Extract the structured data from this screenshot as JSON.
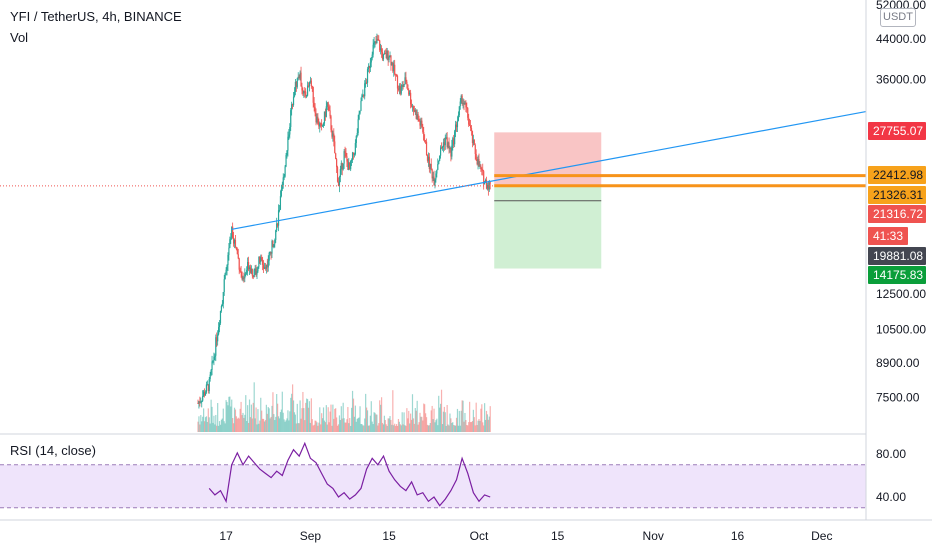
{
  "header": {
    "symbol_line": "YFI / TetherUS, 4h, BINANCE",
    "volume_label": "Vol",
    "currency_button": "USDT"
  },
  "rsi_pane": {
    "title": "RSI (14, close)",
    "tick_labels": [
      "80.00",
      "40.00"
    ]
  },
  "price_scale": {
    "tick_labels": [
      "52000.00",
      "44000.00",
      "36000.00",
      "12500.00",
      "10500.00",
      "8900.00",
      "7500.00"
    ]
  },
  "price_badges": [
    {
      "label": "27755.07",
      "color": "#f23645",
      "text_color": "#ffffff"
    },
    {
      "label": "22412.98",
      "color": "#f7a21b",
      "text_color": "#131722"
    },
    {
      "label": "21326.31",
      "color": "#f7a21b",
      "text_color": "#131722"
    },
    {
      "label": "21316.72",
      "color": "#ef5350",
      "text_color": "#ffffff"
    },
    {
      "label": "41:33",
      "color": "#ef5350",
      "text_color": "#ffffff"
    },
    {
      "label": "19881.08",
      "color": "#434651",
      "text_color": "#ffffff"
    },
    {
      "label": "14175.83",
      "color": "#0a9e3a",
      "text_color": "#ffffff"
    }
  ],
  "time_axis": {
    "labels": [
      "17",
      "Sep",
      "15",
      "Oct",
      "15",
      "Nov",
      "16",
      "Dec"
    ]
  },
  "colors": {
    "up": "#26a69a",
    "down": "#ef5350",
    "trendline": "#2196f3",
    "level_lines": "#f7931a",
    "stop_zone": "#f8bbbb",
    "target_zone": "#c8eccb",
    "rsi_line": "#7b1fa2",
    "rsi_band": "#efe4fb"
  },
  "chart_data": {
    "type": "candlestick",
    "symbol": "YFI / TetherUS",
    "interval": "4h",
    "exchange": "BINANCE",
    "scale": "log",
    "close_path": [
      [
        "Aug 12",
        7300
      ],
      [
        "Aug 14",
        8000
      ],
      [
        "Aug 15",
        9500
      ],
      [
        "Aug 16",
        11500
      ],
      [
        "Aug 17",
        14000
      ],
      [
        "Aug 18",
        17200
      ],
      [
        "Aug 19",
        15200
      ],
      [
        "Aug 20",
        13200
      ],
      [
        "Aug 21",
        14500
      ],
      [
        "Aug 22",
        13800
      ],
      [
        "Aug 23",
        14800
      ],
      [
        "Aug 24",
        14200
      ],
      [
        "Aug 25",
        15500
      ],
      [
        "Aug 26",
        17500
      ],
      [
        "Aug 27",
        21000
      ],
      [
        "Aug 28",
        27000
      ],
      [
        "Aug 29",
        34000
      ],
      [
        "Aug 30",
        37000
      ],
      [
        "Aug 31",
        33000
      ],
      [
        "Sep 1",
        36000
      ],
      [
        "Sep 2",
        30000
      ],
      [
        "Sep 3",
        28000
      ],
      [
        "Sep 4",
        32000
      ],
      [
        "Sep 5",
        27000
      ],
      [
        "Sep 6",
        21500
      ],
      [
        "Sep 7",
        25000
      ],
      [
        "Sep 8",
        23000
      ],
      [
        "Sep 9",
        26000
      ],
      [
        "Sep 10",
        32000
      ],
      [
        "Sep 11",
        36000
      ],
      [
        "Sep 12",
        42000
      ],
      [
        "Sep 13",
        43500
      ],
      [
        "Sep 14",
        40000
      ],
      [
        "Sep 15",
        41000
      ],
      [
        "Sep 16",
        37000
      ],
      [
        "Sep 17",
        34000
      ],
      [
        "Sep 18",
        36000
      ],
      [
        "Sep 19",
        32000
      ],
      [
        "Sep 20",
        30000
      ],
      [
        "Sep 21",
        28000
      ],
      [
        "Sep 22",
        24000
      ],
      [
        "Sep 23",
        22000
      ],
      [
        "Sep 24",
        25000
      ],
      [
        "Sep 25",
        27000
      ],
      [
        "Sep 26",
        25000
      ],
      [
        "Sep 27",
        29000
      ],
      [
        "Sep 28",
        33000
      ],
      [
        "Sep 29",
        30000
      ],
      [
        "Sep 30",
        26000
      ],
      [
        "Oct 1",
        23500
      ],
      [
        "Oct 2",
        21800
      ],
      [
        "Oct 3",
        21316.72
      ]
    ],
    "trendline": {
      "from": [
        "Aug 18",
        17200
      ],
      "to": [
        "Dec 4",
        30000
      ]
    },
    "horizontal_levels": [
      22412.98,
      21326.31
    ],
    "last_price": 21316.72,
    "position_tool": {
      "type": "short",
      "entry": 21326.31,
      "stop": 27755.07,
      "target": 14175.83,
      "from": "Oct 3",
      "to": "Oct 24"
    },
    "price_axis_ticks": [
      52000,
      44000,
      36000,
      12500,
      10500,
      8900,
      7500
    ],
    "time_axis_ticks": [
      "17",
      "Sep",
      "15",
      "Oct",
      "15",
      "Nov",
      "16",
      "Dec"
    ],
    "rsi": {
      "period": 14,
      "source": "close",
      "upper_band": 70,
      "lower_band": 30,
      "ticks": [
        80,
        40
      ],
      "values": [
        [
          "Aug 14",
          48
        ],
        [
          "Aug 15",
          42
        ],
        [
          "Aug 16",
          46
        ],
        [
          "Aug 17",
          36
        ],
        [
          "Aug 18",
          70
        ],
        [
          "Aug 19",
          81
        ],
        [
          "Aug 20",
          70
        ],
        [
          "Aug 21",
          78
        ],
        [
          "Aug 22",
          72
        ],
        [
          "Aug 23",
          66
        ],
        [
          "Aug 24",
          62
        ],
        [
          "Aug 25",
          58
        ],
        [
          "Aug 26",
          64
        ],
        [
          "Aug 27",
          60
        ],
        [
          "Aug 28",
          74
        ],
        [
          "Aug 29",
          84
        ],
        [
          "Aug 30",
          78
        ],
        [
          "Aug 31",
          90
        ],
        [
          "Sep 1",
          76
        ],
        [
          "Sep 2",
          72
        ],
        [
          "Sep 3",
          62
        ],
        [
          "Sep 4",
          52
        ],
        [
          "Sep 5",
          48
        ],
        [
          "Sep 6",
          40
        ],
        [
          "Sep 7",
          44
        ],
        [
          "Sep 8",
          38
        ],
        [
          "Sep 9",
          42
        ],
        [
          "Sep 10",
          48
        ],
        [
          "Sep 11",
          66
        ],
        [
          "Sep 12",
          76
        ],
        [
          "Sep 13",
          70
        ],
        [
          "Sep 14",
          78
        ],
        [
          "Sep 15",
          64
        ],
        [
          "Sep 16",
          56
        ],
        [
          "Sep 17",
          50
        ],
        [
          "Sep 18",
          46
        ],
        [
          "Sep 19",
          54
        ],
        [
          "Sep 20",
          42
        ],
        [
          "Sep 21",
          44
        ],
        [
          "Sep 22",
          36
        ],
        [
          "Sep 23",
          40
        ],
        [
          "Sep 24",
          32
        ],
        [
          "Sep 25",
          38
        ],
        [
          "Sep 26",
          46
        ],
        [
          "Sep 27",
          56
        ],
        [
          "Sep 28",
          76
        ],
        [
          "Sep 29",
          62
        ],
        [
          "Sep 30",
          44
        ],
        [
          "Oct 1",
          36
        ],
        [
          "Oct 2",
          42
        ],
        [
          "Oct 3",
          40
        ]
      ]
    }
  }
}
